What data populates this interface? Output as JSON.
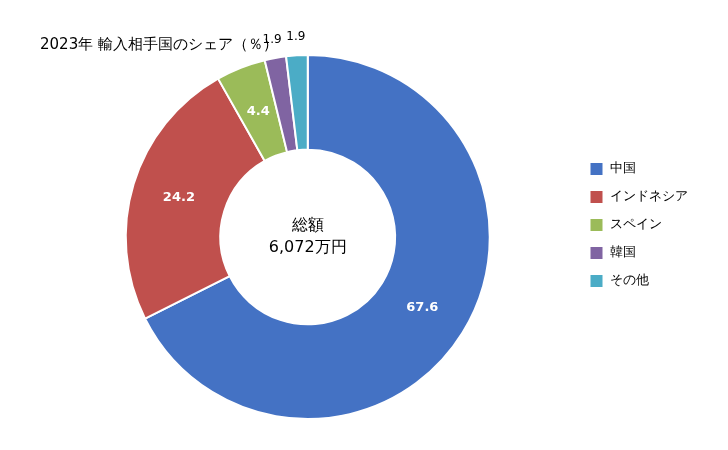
{
  "chart_data": {
    "type": "doughnut",
    "title": "2023年 輸入相手国のシェア（％）",
    "annotations": [
      "総額",
      "6,072万円"
    ],
    "categories": [
      "中国",
      "インドネシア",
      "スペイン",
      "韓国",
      "その他"
    ],
    "values": [
      67.6,
      24.2,
      4.4,
      1.9,
      1.9
    ],
    "colors": [
      "#4472C4",
      "#C0504D",
      "#9BBB59",
      "#8064A2",
      "#4BACC6"
    ],
    "data_labels": true,
    "legend": "right"
  }
}
